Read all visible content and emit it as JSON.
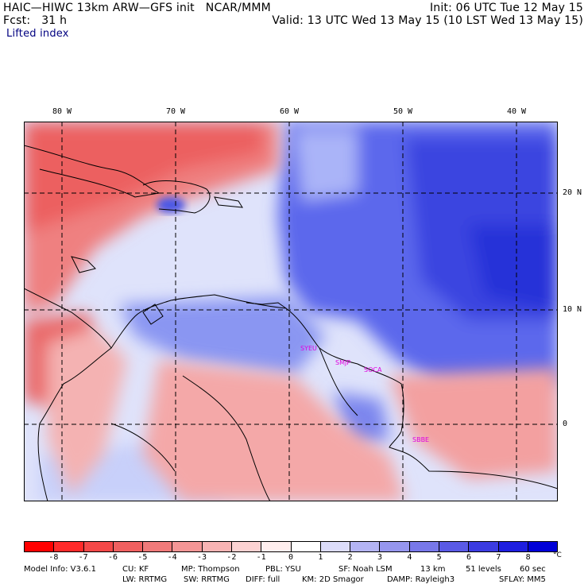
{
  "header": {
    "line1_left": "HAIC—HIWC 13km ARW—GFS init   NCAR/MMM",
    "line1_right": "Init: 06 UTC Tue 12 May 15",
    "line2_left": "Fcst:   31 h",
    "line2_right": "Valid: 13 UTC Wed 13 May 15 (10 LST Wed 13 May 15)",
    "field": "Lifted index"
  },
  "map": {
    "lon_labels": [
      "80 W",
      "70 W",
      "60 W",
      "50 W",
      "40 W"
    ],
    "lat_labels": [
      "20 N",
      "10 N",
      "0"
    ],
    "stations": [
      "SYEU",
      "SMJP",
      "SOCA",
      "SBBE"
    ],
    "colors": {
      "negative": "#e83c3c",
      "positive": "#2a3cd8",
      "neutral": "#ffffff"
    }
  },
  "colorbar": {
    "ticks": [
      "-8",
      "-7",
      "-6",
      "-5",
      "-4",
      "-3",
      "-2",
      "-1",
      "0",
      "1",
      "2",
      "3",
      "4",
      "5",
      "6",
      "7",
      "8"
    ],
    "unit": "°C",
    "colors": [
      "#ff0000",
      "#ff2a2a",
      "#f44848",
      "#f06060",
      "#f07a7a",
      "#f49696",
      "#f8b4b4",
      "#fcd2d2",
      "#ffeeee",
      "#ffffff",
      "#dcdcfa",
      "#b4b4f4",
      "#9696ee",
      "#7878ea",
      "#5a5ae6",
      "#3c3ce2",
      "#1e1ee0",
      "#0000d8"
    ]
  },
  "model_info": {
    "line1": [
      "Model Info: V3.6.1",
      "CU: KF",
      "MP: Thompson",
      "PBL: YSU",
      "SF: Noah LSM",
      "13 km",
      "51 levels",
      "60 sec"
    ],
    "line2": [
      "LW: RRTMG",
      "SW: RRTMG",
      "DIFF: full",
      "KM: 2D Smagor",
      "DAMP: Rayleigh3",
      "SFLAY: MM5"
    ]
  }
}
